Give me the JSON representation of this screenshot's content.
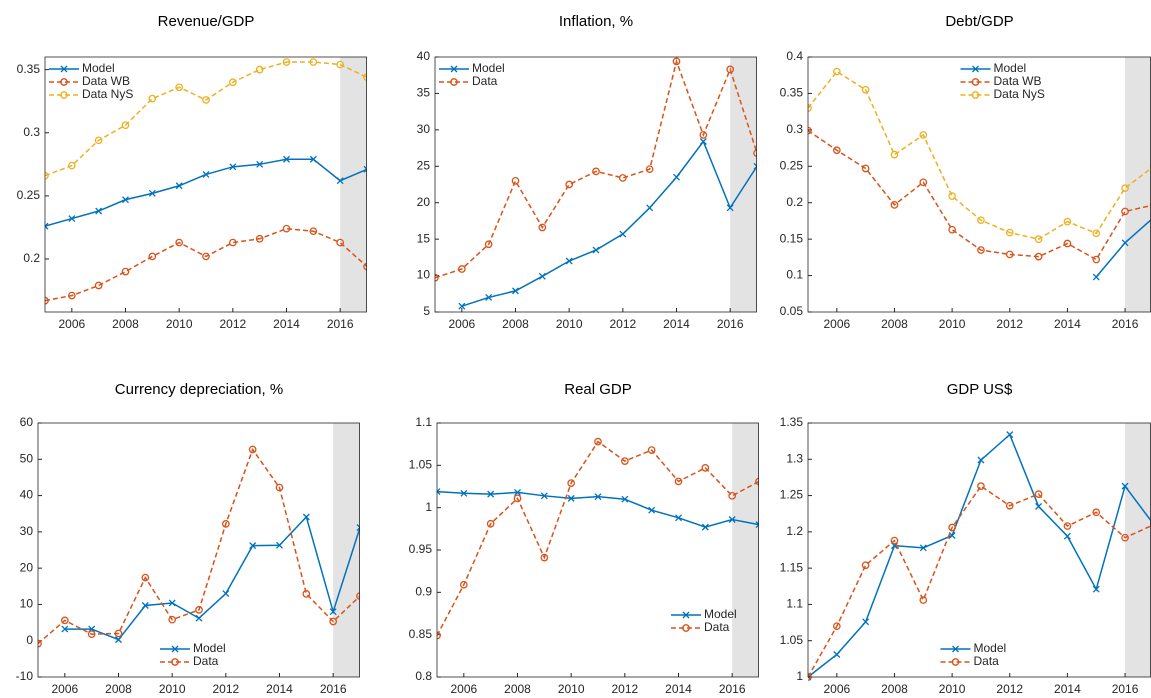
{
  "chart_data": [
    {
      "type": "line",
      "title": "Revenue/GDP",
      "x": [
        2005,
        2006,
        2007,
        2008,
        2009,
        2010,
        2011,
        2012,
        2013,
        2014,
        2015,
        2016,
        2017
      ],
      "xlim": [
        2005,
        2017
      ],
      "xticks": [
        2006,
        2008,
        2010,
        2012,
        2014,
        2016
      ],
      "ylim": [
        0.158,
        0.36
      ],
      "yticks": [
        0.2,
        0.25,
        0.3,
        0.35
      ],
      "shade_x": [
        2016,
        2017
      ],
      "legend": "upper-left",
      "series": [
        {
          "name": "Model",
          "color": "#0072bd",
          "marker": "x",
          "dash": false,
          "values": [
            0.226,
            0.232,
            0.238,
            0.247,
            0.252,
            0.258,
            0.267,
            0.273,
            0.275,
            0.279,
            0.279,
            0.262,
            0.271
          ]
        },
        {
          "name": "Data WB",
          "color": "#d95319",
          "marker": "o",
          "dash": true,
          "values": [
            0.167,
            0.171,
            0.179,
            0.19,
            0.202,
            0.213,
            0.202,
            0.213,
            0.216,
            0.224,
            0.222,
            0.213,
            0.194
          ]
        },
        {
          "name": "Data NyS",
          "color": "#edb120",
          "marker": "o",
          "dash": true,
          "values": [
            0.266,
            0.274,
            0.294,
            0.306,
            0.327,
            0.336,
            0.326,
            0.34,
            0.35,
            0.356,
            0.356,
            0.354,
            0.344
          ]
        }
      ]
    },
    {
      "type": "line",
      "title": "Inflation, %",
      "x": [
        2005,
        2006,
        2007,
        2008,
        2009,
        2010,
        2011,
        2012,
        2013,
        2014,
        2015,
        2016,
        2017
      ],
      "xlim": [
        2005,
        2017
      ],
      "xticks": [
        2006,
        2008,
        2010,
        2012,
        2014,
        2016
      ],
      "ylim": [
        5,
        40
      ],
      "yticks": [
        5,
        10,
        15,
        20,
        25,
        30,
        35,
        40
      ],
      "shade_x": [
        2016,
        2017
      ],
      "legend": "upper-left",
      "series": [
        {
          "name": "Model",
          "color": "#0072bd",
          "marker": "x",
          "dash": false,
          "values": [
            null,
            5.8,
            7,
            7.9,
            9.9,
            12,
            13.5,
            15.7,
            19.3,
            23.5,
            28.4,
            19.3,
            25
          ]
        },
        {
          "name": "Data",
          "color": "#d95319",
          "marker": "o",
          "dash": true,
          "values": [
            9.7,
            10.9,
            14.3,
            23,
            16.6,
            22.5,
            24.3,
            23.4,
            24.6,
            39.4,
            29.3,
            38.3,
            26.8
          ]
        }
      ]
    },
    {
      "type": "line",
      "title": "Debt/GDP",
      "x": [
        2005,
        2006,
        2007,
        2008,
        2009,
        2010,
        2011,
        2012,
        2013,
        2014,
        2015,
        2016,
        2017
      ],
      "xlim": [
        2005,
        2016.9
      ],
      "xticks": [
        2006,
        2008,
        2010,
        2012,
        2014,
        2016
      ],
      "ylim": [
        0.05,
        0.4
      ],
      "yticks": [
        0.05,
        0.1,
        0.15,
        0.2,
        0.25,
        0.3,
        0.35,
        0.4
      ],
      "shade_x": [
        2016,
        2017
      ],
      "legend": "north",
      "series": [
        {
          "name": "Model",
          "color": "#0072bd",
          "marker": "x",
          "dash": false,
          "values": [
            null,
            null,
            null,
            null,
            null,
            null,
            null,
            null,
            null,
            null,
            0.098,
            0.145,
            0.18
          ]
        },
        {
          "name": "Data WB",
          "color": "#d95319",
          "marker": "o",
          "dash": true,
          "values": [
            0.299,
            0.272,
            0.247,
            0.197,
            0.228,
            0.163,
            0.135,
            0.129,
            0.126,
            0.144,
            0.122,
            0.188,
            0.197
          ]
        },
        {
          "name": "Data NyS",
          "color": "#edb120",
          "marker": "o",
          "dash": true,
          "values": [
            0.33,
            0.38,
            0.355,
            0.266,
            0.293,
            0.209,
            0.176,
            0.159,
            0.15,
            0.174,
            0.158,
            0.22,
            0.25
          ]
        }
      ]
    },
    {
      "type": "line",
      "title": "Currency depreciation, %",
      "x": [
        2005,
        2006,
        2007,
        2008,
        2009,
        2010,
        2011,
        2012,
        2013,
        2014,
        2015,
        2016,
        2017
      ],
      "xlim": [
        2005,
        2017
      ],
      "xticks": [
        2006,
        2008,
        2010,
        2012,
        2014,
        2016
      ],
      "ylim": [
        -10,
        60
      ],
      "yticks": [
        -10,
        0,
        10,
        20,
        30,
        40,
        50,
        60
      ],
      "shade_x": [
        2016,
        2017
      ],
      "legend": "south",
      "series": [
        {
          "name": "Model",
          "color": "#0072bd",
          "marker": "x",
          "dash": false,
          "values": [
            null,
            3.2,
            3.2,
            0.3,
            9.7,
            10.4,
            6.2,
            13,
            26.2,
            26.3,
            34.1,
            8,
            31.2
          ]
        },
        {
          "name": "Data",
          "color": "#d95319",
          "marker": "o",
          "dash": true,
          "values": [
            -0.8,
            5.6,
            1.8,
            2,
            17.4,
            5.8,
            8.5,
            32.2,
            52.7,
            42.2,
            12.9,
            5.3,
            12.3
          ]
        }
      ]
    },
    {
      "type": "line",
      "title": "Real GDP",
      "x": [
        2005,
        2006,
        2007,
        2008,
        2009,
        2010,
        2011,
        2012,
        2013,
        2014,
        2015,
        2016,
        2017
      ],
      "xlim": [
        2005,
        2017
      ],
      "xticks": [
        2006,
        2008,
        2010,
        2012,
        2014,
        2016
      ],
      "ylim": [
        0.8,
        1.1
      ],
      "yticks": [
        0.8,
        0.85,
        0.9,
        0.95,
        1,
        1.05,
        1.1
      ],
      "shade_x": [
        2016,
        2017
      ],
      "legend": "southeast",
      "series": [
        {
          "name": "Model",
          "color": "#0072bd",
          "marker": "x",
          "dash": false,
          "values": [
            1.019,
            1.017,
            1.016,
            1.018,
            1.014,
            1.011,
            1.013,
            1.01,
            0.997,
            0.988,
            0.977,
            0.986,
            0.98
          ]
        },
        {
          "name": "Data",
          "color": "#d95319",
          "marker": "o",
          "dash": true,
          "values": [
            0.849,
            0.909,
            0.981,
            1.011,
            0.941,
            1.029,
            1.078,
            1.055,
            1.068,
            1.031,
            1.047,
            1.014,
            1.031
          ]
        }
      ]
    },
    {
      "type": "line",
      "title": "GDP US$",
      "x": [
        2005,
        2006,
        2007,
        2008,
        2009,
        2010,
        2011,
        2012,
        2013,
        2014,
        2015,
        2016,
        2017
      ],
      "xlim": [
        2005,
        2016.9
      ],
      "xticks": [
        2006,
        2008,
        2010,
        2012,
        2014,
        2016
      ],
      "ylim": [
        1,
        1.35
      ],
      "yticks": [
        1,
        1.05,
        1.1,
        1.15,
        1.2,
        1.25,
        1.3,
        1.35
      ],
      "shade_x": [
        2016,
        2017
      ],
      "legend": "south",
      "series": [
        {
          "name": "Model",
          "color": "#0072bd",
          "marker": "x",
          "dash": false,
          "values": [
            1,
            1.031,
            1.076,
            1.181,
            1.178,
            1.195,
            1.299,
            1.334,
            1.235,
            1.194,
            1.121,
            1.263,
            1.21
          ]
        },
        {
          "name": "Data",
          "color": "#d95319",
          "marker": "o",
          "dash": true,
          "values": [
            1,
            1.07,
            1.154,
            1.188,
            1.106,
            1.206,
            1.263,
            1.236,
            1.252,
            1.208,
            1.227,
            1.192,
            1.21
          ]
        }
      ]
    }
  ]
}
